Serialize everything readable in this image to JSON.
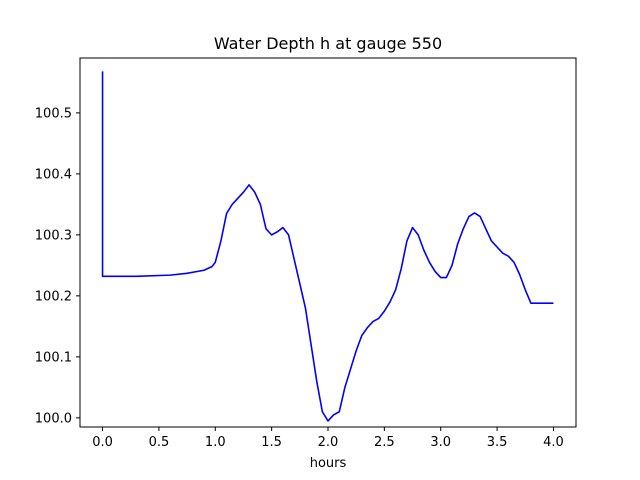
{
  "chart_data": {
    "type": "line",
    "title": "Water Depth h at gauge 550",
    "xlabel": "hours",
    "ylabel": "",
    "xlim": [
      -0.2,
      4.2
    ],
    "ylim": [
      99.985,
      100.59
    ],
    "xticks": [
      {
        "value": 0.0,
        "label": "0.0"
      },
      {
        "value": 0.5,
        "label": "0.5"
      },
      {
        "value": 1.0,
        "label": "1.0"
      },
      {
        "value": 1.5,
        "label": "1.5"
      },
      {
        "value": 2.0,
        "label": "2.0"
      },
      {
        "value": 2.5,
        "label": "2.5"
      },
      {
        "value": 3.0,
        "label": "3.0"
      },
      {
        "value": 3.5,
        "label": "3.5"
      },
      {
        "value": 4.0,
        "label": "4.0"
      }
    ],
    "yticks": [
      {
        "value": 100.0,
        "label": "100.0"
      },
      {
        "value": 100.1,
        "label": "100.1"
      },
      {
        "value": 100.2,
        "label": "100.2"
      },
      {
        "value": 100.3,
        "label": "100.3"
      },
      {
        "value": 100.4,
        "label": "100.4"
      },
      {
        "value": 100.5,
        "label": "100.5"
      }
    ],
    "grid": false,
    "series": [
      {
        "color": "#0000ff",
        "x": [
          0.0,
          0.0,
          0.0,
          0.3,
          0.6,
          0.75,
          0.9,
          0.97,
          1.0,
          1.05,
          1.1,
          1.15,
          1.2,
          1.25,
          1.3,
          1.35,
          1.4,
          1.45,
          1.5,
          1.55,
          1.6,
          1.65,
          1.7,
          1.75,
          1.8,
          1.85,
          1.9,
          1.95,
          2.0,
          2.05,
          2.1,
          2.15,
          2.2,
          2.25,
          2.3,
          2.35,
          2.4,
          2.45,
          2.5,
          2.55,
          2.6,
          2.65,
          2.7,
          2.75,
          2.8,
          2.85,
          2.9,
          2.95,
          3.0,
          3.05,
          3.1,
          3.15,
          3.2,
          3.25,
          3.3,
          3.35,
          3.4,
          3.45,
          3.5,
          3.55,
          3.6,
          3.65,
          3.7,
          3.75,
          3.8,
          3.85,
          3.9,
          3.95,
          4.0
        ],
        "y": [
          100.568,
          100.232,
          100.232,
          100.232,
          100.234,
          100.237,
          100.242,
          100.248,
          100.255,
          100.29,
          100.335,
          100.35,
          100.36,
          100.37,
          100.382,
          100.37,
          100.35,
          100.31,
          100.3,
          100.305,
          100.312,
          100.3,
          100.26,
          100.22,
          100.18,
          100.12,
          100.06,
          100.01,
          99.995,
          100.005,
          100.01,
          100.05,
          100.08,
          100.11,
          100.135,
          100.148,
          100.158,
          100.163,
          100.175,
          100.19,
          100.21,
          100.245,
          100.29,
          100.312,
          100.3,
          100.275,
          100.255,
          100.24,
          100.23,
          100.23,
          100.25,
          100.285,
          100.31,
          100.33,
          100.336,
          100.33,
          100.31,
          100.29,
          100.28,
          100.27,
          100.265,
          100.255,
          100.235,
          100.21,
          100.188,
          100.188,
          100.188,
          100.188,
          100.188
        ]
      }
    ]
  }
}
